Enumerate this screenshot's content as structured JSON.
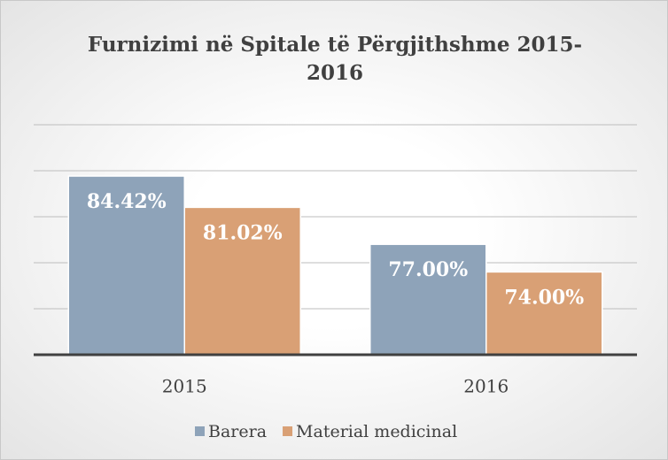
{
  "chart_data": {
    "type": "bar",
    "title": "Furnizimi në Spitale të Përgjithshme 2015-2016",
    "categories": [
      "2015",
      "2016"
    ],
    "series": [
      {
        "name": "Barera",
        "color": "#8ea3b9",
        "values": [
          84.42,
          77.0
        ],
        "value_labels": [
          "84.42%",
          "77.00%"
        ]
      },
      {
        "name": "Material medicinal",
        "color": "#d9a075",
        "values": [
          81.02,
          74.0
        ],
        "value_labels": [
          "81.02%",
          "74.00%"
        ]
      }
    ],
    "ylim": [
      65,
      90
    ],
    "yticks": [
      65,
      70,
      75,
      80,
      85,
      90
    ],
    "grid": true,
    "legend": "bottom"
  }
}
